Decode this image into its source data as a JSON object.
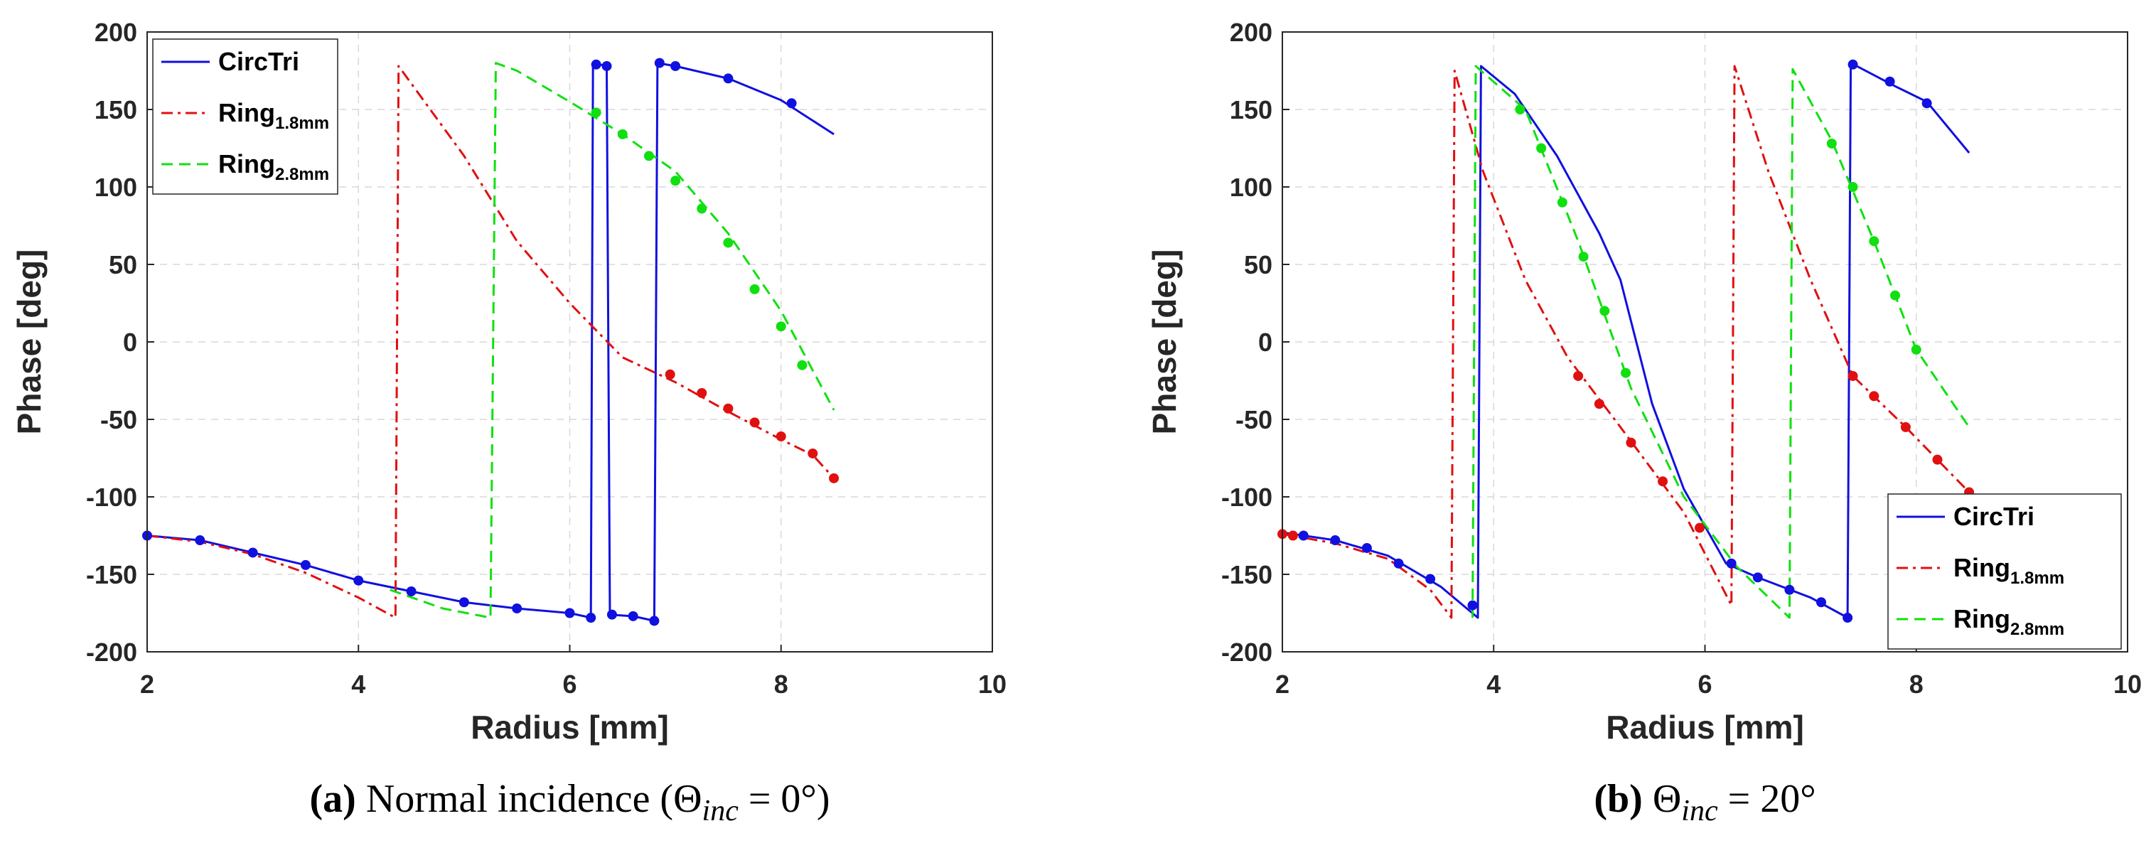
{
  "chart_data": [
    {
      "type": "line",
      "panel": "a",
      "xlabel": "Radius [mm]",
      "ylabel": "Phase [deg]",
      "xlim": [
        2,
        10
      ],
      "ylim": [
        -200,
        200
      ],
      "xticks": [
        2,
        4,
        6,
        8,
        10
      ],
      "yticks": [
        -200,
        -150,
        -100,
        -50,
        0,
        50,
        100,
        150,
        200
      ],
      "grid": true,
      "legend_position": "top-left",
      "caption": {
        "label": "(a)",
        "text": "Normal incidence (",
        "theta": "Θ",
        "sub": "inc",
        "rest": " = 0°)"
      },
      "series": [
        {
          "name": "CircTri",
          "legend_main": "CircTri",
          "legend_sub": "",
          "color": "#1010e0",
          "style": "solid",
          "line": [
            [
              2.0,
              -125
            ],
            [
              2.5,
              -128
            ],
            [
              3.0,
              -136
            ],
            [
              3.5,
              -144
            ],
            [
              4.0,
              -154
            ],
            [
              4.5,
              -161
            ],
            [
              5.0,
              -168
            ],
            [
              5.5,
              -172
            ],
            [
              6.0,
              -175
            ],
            [
              6.2,
              -178
            ],
            [
              6.22,
              180
            ],
            [
              6.35,
              178
            ],
            [
              6.38,
              -176
            ],
            [
              6.6,
              -177
            ],
            [
              6.8,
              -180
            ],
            [
              6.83,
              180
            ],
            [
              7.0,
              178
            ],
            [
              7.5,
              170
            ],
            [
              8.0,
              156
            ],
            [
              8.5,
              134
            ]
          ],
          "markers": [
            [
              2.0,
              -125
            ],
            [
              2.5,
              -128
            ],
            [
              3.0,
              -136
            ],
            [
              3.5,
              -144
            ],
            [
              4.0,
              -154
            ],
            [
              4.5,
              -161
            ],
            [
              5.0,
              -168
            ],
            [
              5.5,
              -172
            ],
            [
              6.0,
              -175
            ],
            [
              6.2,
              -178
            ],
            [
              6.25,
              179
            ],
            [
              6.35,
              178
            ],
            [
              6.4,
              -176
            ],
            [
              6.6,
              -177
            ],
            [
              6.8,
              -180
            ],
            [
              6.85,
              180
            ],
            [
              7.0,
              178
            ],
            [
              7.5,
              170
            ],
            [
              8.1,
              154
            ]
          ]
        },
        {
          "name": "Ring1.8mm",
          "legend_main": "Ring",
          "legend_sub": "1.8mm",
          "color": "#e01010",
          "style": "dashdot",
          "line": [
            [
              2.0,
              -125
            ],
            [
              2.5,
              -129
            ],
            [
              3.0,
              -137
            ],
            [
              3.5,
              -149
            ],
            [
              4.0,
              -165
            ],
            [
              4.35,
              -178
            ],
            [
              4.38,
              178
            ],
            [
              5.0,
              120
            ],
            [
              5.5,
              65
            ],
            [
              6.0,
              25
            ],
            [
              6.5,
              -10
            ],
            [
              7.0,
              -26
            ],
            [
              7.5,
              -45
            ],
            [
              8.0,
              -63
            ],
            [
              8.3,
              -73
            ],
            [
              8.5,
              -88
            ]
          ],
          "markers": [
            [
              6.95,
              -21
            ],
            [
              7.25,
              -33
            ],
            [
              7.5,
              -43
            ],
            [
              7.75,
              -52
            ],
            [
              8.0,
              -61
            ],
            [
              8.3,
              -72
            ],
            [
              8.5,
              -88
            ]
          ]
        },
        {
          "name": "Ring2.8mm",
          "legend_main": "Ring",
          "legend_sub": "2.8mm",
          "color": "#10e010",
          "style": "dashed",
          "line": [
            [
              4.3,
              -160
            ],
            [
              4.8,
              -172
            ],
            [
              5.25,
              -178
            ],
            [
              5.3,
              180
            ],
            [
              5.5,
              175
            ],
            [
              6.0,
              155
            ],
            [
              6.5,
              134
            ],
            [
              7.0,
              110
            ],
            [
              7.5,
              70
            ],
            [
              8.0,
              20
            ],
            [
              8.5,
              -44
            ]
          ],
          "markers": [
            [
              6.25,
              148
            ],
            [
              6.5,
              134
            ],
            [
              6.75,
              120
            ],
            [
              7.0,
              104
            ],
            [
              7.25,
              86
            ],
            [
              7.5,
              64
            ],
            [
              7.75,
              34
            ],
            [
              8.0,
              10
            ],
            [
              8.2,
              -15
            ]
          ]
        }
      ]
    },
    {
      "type": "line",
      "panel": "b",
      "xlabel": "Radius [mm]",
      "ylabel": "Phase [deg]",
      "xlim": [
        2,
        10
      ],
      "ylim": [
        -200,
        200
      ],
      "xticks": [
        2,
        4,
        6,
        8,
        10
      ],
      "yticks": [
        -200,
        -150,
        -100,
        -50,
        0,
        50,
        100,
        150,
        200
      ],
      "grid": true,
      "legend_position": "bottom-right",
      "caption": {
        "label": "(b)",
        "text": "",
        "theta": "Θ",
        "sub": "inc",
        "rest": " = 20°"
      },
      "series": [
        {
          "name": "CircTri",
          "legend_main": "CircTri",
          "legend_sub": "",
          "color": "#1010e0",
          "style": "solid",
          "line": [
            [
              2.0,
              -123
            ],
            [
              2.5,
              -128
            ],
            [
              3.0,
              -138
            ],
            [
              3.5,
              -158
            ],
            [
              3.85,
              -178
            ],
            [
              3.88,
              178
            ],
            [
              4.2,
              160
            ],
            [
              4.6,
              120
            ],
            [
              5.0,
              70
            ],
            [
              5.2,
              40
            ],
            [
              5.5,
              -40
            ],
            [
              5.8,
              -95
            ],
            [
              6.2,
              -143
            ],
            [
              6.5,
              -152
            ],
            [
              7.0,
              -165
            ],
            [
              7.35,
              -178
            ],
            [
              7.38,
              180
            ],
            [
              7.8,
              165
            ],
            [
              8.1,
              155
            ],
            [
              8.5,
              122
            ]
          ],
          "markers": [
            [
              2.2,
              -125
            ],
            [
              2.5,
              -128
            ],
            [
              2.8,
              -133
            ],
            [
              3.1,
              -143
            ],
            [
              3.4,
              -153
            ],
            [
              3.8,
              -170
            ],
            [
              6.25,
              -143
            ],
            [
              6.5,
              -152
            ],
            [
              6.8,
              -160
            ],
            [
              7.1,
              -168
            ],
            [
              7.35,
              -178
            ],
            [
              7.4,
              179
            ],
            [
              7.75,
              168
            ],
            [
              8.1,
              154
            ]
          ]
        },
        {
          "name": "Ring1.8mm",
          "legend_main": "Ring",
          "legend_sub": "1.8mm",
          "color": "#e01010",
          "style": "dashdot",
          "line": [
            [
              2.0,
              -124
            ],
            [
              2.5,
              -130
            ],
            [
              3.0,
              -140
            ],
            [
              3.4,
              -160
            ],
            [
              3.6,
              -178
            ],
            [
              3.63,
              175
            ],
            [
              3.9,
              110
            ],
            [
              4.3,
              40
            ],
            [
              4.7,
              -10
            ],
            [
              5.2,
              -55
            ],
            [
              5.8,
              -110
            ],
            [
              6.25,
              -170
            ],
            [
              6.28,
              178
            ],
            [
              6.6,
              110
            ],
            [
              7.0,
              40
            ],
            [
              7.4,
              -22
            ],
            [
              7.9,
              -55
            ],
            [
              8.5,
              -97
            ]
          ],
          "markers": [
            [
              2.0,
              -124
            ],
            [
              2.1,
              -125
            ],
            [
              4.8,
              -22
            ],
            [
              5.0,
              -40
            ],
            [
              5.3,
              -65
            ],
            [
              5.6,
              -90
            ],
            [
              5.95,
              -120
            ],
            [
              7.4,
              -22
            ],
            [
              7.6,
              -35
            ],
            [
              7.9,
              -55
            ],
            [
              8.2,
              -76
            ],
            [
              8.5,
              -97
            ]
          ]
        },
        {
          "name": "Ring2.8mm",
          "legend_main": "Ring",
          "legend_sub": "2.8mm",
          "color": "#10e010",
          "style": "dashed",
          "line": [
            [
              3.8,
              -178
            ],
            [
              3.83,
              178
            ],
            [
              4.3,
              150
            ],
            [
              4.8,
              65
            ],
            [
              5.3,
              -30
            ],
            [
              5.8,
              -100
            ],
            [
              6.3,
              -145
            ],
            [
              6.8,
              -178
            ],
            [
              6.83,
              176
            ],
            [
              7.2,
              130
            ],
            [
              7.6,
              65
            ],
            [
              8.0,
              -5
            ],
            [
              8.5,
              -55
            ]
          ],
          "markers": [
            [
              4.25,
              150
            ],
            [
              4.45,
              125
            ],
            [
              4.65,
              90
            ],
            [
              4.85,
              55
            ],
            [
              5.05,
              20
            ],
            [
              5.25,
              -20
            ],
            [
              7.2,
              128
            ],
            [
              7.4,
              100
            ],
            [
              7.6,
              65
            ],
            [
              7.8,
              30
            ],
            [
              8.0,
              -5
            ]
          ]
        }
      ]
    }
  ]
}
